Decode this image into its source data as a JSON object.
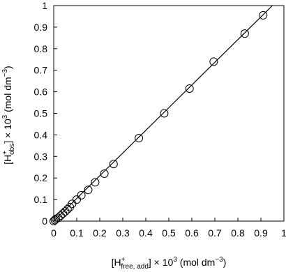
{
  "chart_data": {
    "type": "scatter",
    "x_label": [
      {
        "text": "[H"
      },
      {
        "text": "+",
        "pos": "sup"
      },
      {
        "text": "free, add",
        "pos": "sub"
      },
      {
        "text": "] × 10"
      },
      {
        "text": "3",
        "pos": "sup"
      },
      {
        "text": " (mol dm"
      },
      {
        "text": "−3",
        "pos": "sup"
      },
      {
        "text": ")"
      }
    ],
    "y_label": [
      {
        "text": "[H"
      },
      {
        "text": "+",
        "pos": "sup"
      },
      {
        "text": "obs",
        "pos": "sub"
      },
      {
        "text": "] × 10"
      },
      {
        "text": "3",
        "pos": "sup"
      },
      {
        "text": " (mol dm"
      },
      {
        "text": "−3",
        "pos": "sup"
      },
      {
        "text": ")"
      }
    ],
    "series": [
      {
        "type": "scatter",
        "color": "#000000",
        "x": [
          0,
          0.005,
          0.01,
          0.02,
          0.03,
          0.04,
          0.05,
          0.06,
          0.07,
          0.08,
          0.1,
          0.12,
          0.15,
          0.18,
          0.22,
          0.26,
          0.37,
          0.48,
          0.59,
          0.695,
          0.83,
          0.91
        ],
        "values": [
          0,
          0.005,
          0.01,
          0.015,
          0.025,
          0.035,
          0.045,
          0.055,
          0.065,
          0.08,
          0.1,
          0.12,
          0.145,
          0.18,
          0.22,
          0.265,
          0.385,
          0.5,
          0.615,
          0.74,
          0.87,
          0.955
        ]
      },
      {
        "type": "line",
        "color": "#000000",
        "x": [
          0,
          0.95
        ],
        "values": [
          0,
          1
        ]
      }
    ],
    "xlim": [
      0,
      1
    ],
    "ylim": [
      0,
      1
    ],
    "xticks": [
      0,
      0.1,
      0.2,
      0.3,
      0.4,
      0.5,
      0.6,
      0.7,
      0.8,
      0.9,
      1
    ],
    "yticks": [
      0,
      0.1,
      0.2,
      0.3,
      0.4,
      0.5,
      0.6,
      0.7,
      0.8,
      0.9,
      1
    ]
  }
}
